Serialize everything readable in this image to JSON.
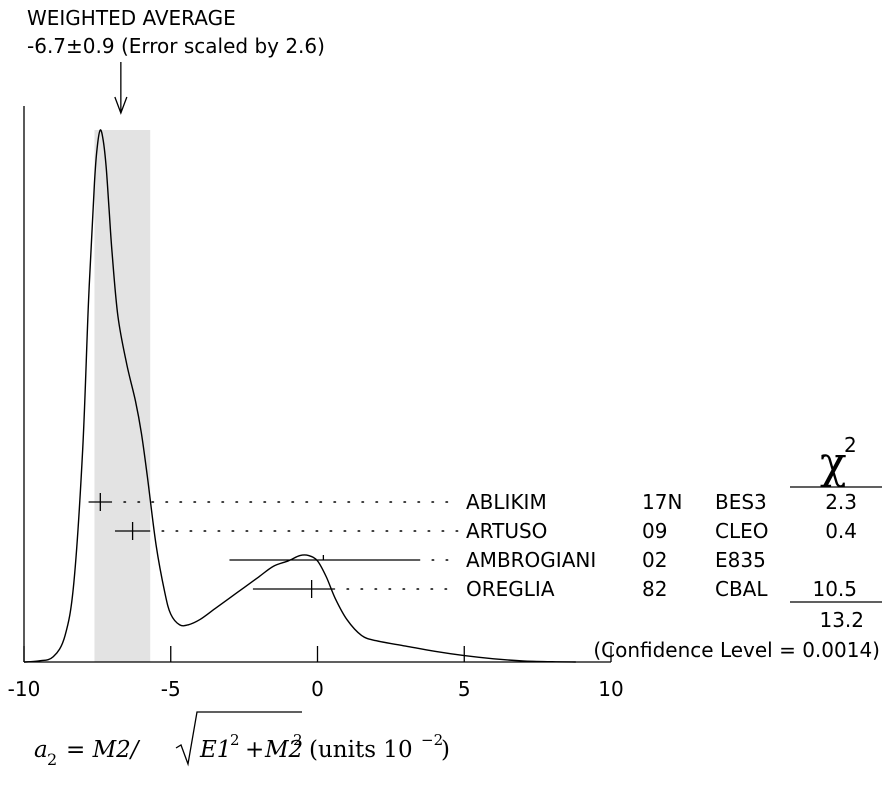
{
  "chart_data": {
    "type": "ideogram",
    "average_title": "WEIGHTED AVERAGE",
    "average_value_text": "-6.7±0.9 (Error scaled by 2.6)",
    "weighted_average": -6.7,
    "weighted_average_error": 0.9,
    "error_scale": 2.6,
    "band": [
      -7.6,
      -5.7
    ],
    "xlim": [
      -10,
      10
    ],
    "x_ticks": [
      -10,
      -5,
      0,
      5,
      10
    ],
    "x_tick_labels": [
      "-10",
      "-5",
      "0",
      "5",
      "10"
    ],
    "xlabel": {
      "symbol": "a",
      "sub": "2",
      "eq": "= M2/",
      "root_a": "E1",
      "sup_a": "2",
      "plus": "+",
      "root_b": "M2",
      "sup_b": "2",
      "units_text": "(units 10",
      "units_exp": "−2",
      "units_close": ")"
    },
    "chi2_header": "χ",
    "chi2_header_exp": "2",
    "measurements": [
      {
        "name": "ABLIKIM",
        "year": "17N",
        "experiment": "BES3",
        "value": -7.4,
        "err_low": 0.4,
        "err_high": 0.4,
        "chi2": "2.3",
        "included": true
      },
      {
        "name": "ARTUSO",
        "year": "09",
        "experiment": "CLEO",
        "value": -6.3,
        "err_low": 0.6,
        "err_high": 0.6,
        "chi2": "0.4",
        "included": true
      },
      {
        "name": "AMBROGIANI",
        "year": "02",
        "experiment": "E835",
        "value": 0.2,
        "err_low": 3.2,
        "err_high": 3.3,
        "chi2": "",
        "included": false
      },
      {
        "name": "OREGLIA",
        "year": "82",
        "experiment": "CBAL",
        "value": -0.2,
        "err_low": 2.0,
        "err_high": 0.8,
        "chi2": "10.5",
        "included": true
      }
    ],
    "chi2_total": "13.2",
    "confidence_text": "(Confidence Level = 0.0014)",
    "ideogram_curve": [
      [
        -10.0,
        0.0
      ],
      [
        -9.5,
        0.002
      ],
      [
        -9.0,
        0.01
      ],
      [
        -8.6,
        0.05
      ],
      [
        -8.3,
        0.15
      ],
      [
        -8.0,
        0.4
      ],
      [
        -7.8,
        0.68
      ],
      [
        -7.6,
        0.9
      ],
      [
        -7.5,
        0.97
      ],
      [
        -7.4,
        1.0
      ],
      [
        -7.3,
        0.98
      ],
      [
        -7.2,
        0.93
      ],
      [
        -7.1,
        0.85
      ],
      [
        -7.0,
        0.77
      ],
      [
        -6.8,
        0.65
      ],
      [
        -6.5,
        0.56
      ],
      [
        -6.2,
        0.49
      ],
      [
        -6.0,
        0.43
      ],
      [
        -5.8,
        0.35
      ],
      [
        -5.5,
        0.22
      ],
      [
        -5.2,
        0.13
      ],
      [
        -5.0,
        0.09
      ],
      [
        -4.7,
        0.07
      ],
      [
        -4.4,
        0.07
      ],
      [
        -4.0,
        0.08
      ],
      [
        -3.5,
        0.1
      ],
      [
        -3.0,
        0.12
      ],
      [
        -2.5,
        0.14
      ],
      [
        -2.0,
        0.16
      ],
      [
        -1.5,
        0.18
      ],
      [
        -1.0,
        0.19
      ],
      [
        -0.6,
        0.2
      ],
      [
        -0.3,
        0.2
      ],
      [
        0.0,
        0.19
      ],
      [
        0.3,
        0.16
      ],
      [
        0.6,
        0.12
      ],
      [
        1.0,
        0.08
      ],
      [
        1.5,
        0.05
      ],
      [
        2.0,
        0.04
      ],
      [
        3.0,
        0.03
      ],
      [
        4.0,
        0.02
      ],
      [
        5.0,
        0.012
      ],
      [
        6.0,
        0.006
      ],
      [
        7.0,
        0.002
      ],
      [
        8.0,
        0.0005
      ],
      [
        8.8,
        0.0
      ]
    ]
  }
}
